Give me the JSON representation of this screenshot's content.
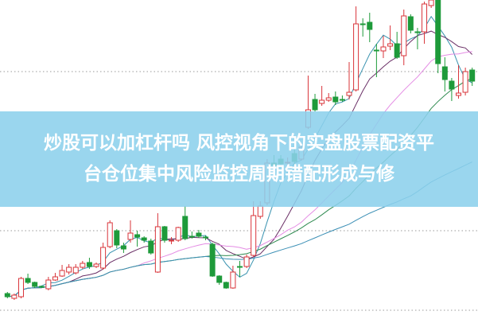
{
  "headline": {
    "line1": "炒股可以加杠杆吗 风控视角下的实盘股票配资平",
    "line2": "台仓位集中风险监控周期错配形成与修"
  },
  "colors": {
    "up": "#d9343a",
    "down": "#1e9a3a",
    "banner": "#8cd0ec",
    "ma5": "#3a93b0",
    "ma10": "#6a2f66",
    "ma20": "#e48ce4",
    "ma30": "#2f8a50",
    "ma60": "#3b8fb5",
    "grid": "#999999"
  },
  "chart_data": {
    "type": "candlestick",
    "title": "",
    "xlabel": "",
    "ylabel": "",
    "axes_shown": false,
    "grid": "horizontal dotted",
    "moving_averages": [
      5,
      10,
      20,
      30,
      60
    ],
    "ohlc_fields": [
      "open",
      "close",
      "high",
      "low"
    ],
    "candles": [
      [
        3.1,
        2.7,
        3.3,
        2.5
      ],
      [
        2.5,
        2.9,
        3.1,
        2.3
      ],
      [
        2.7,
        5.0,
        5.2,
        2.5
      ],
      [
        5.0,
        4.5,
        5.6,
        4.3
      ],
      [
        4.5,
        4.0,
        4.6,
        3.8
      ],
      [
        4.0,
        3.9,
        4.1,
        3.8
      ],
      [
        3.7,
        4.8,
        5.2,
        3.5
      ],
      [
        4.8,
        5.2,
        5.7,
        4.7
      ],
      [
        5.3,
        6.0,
        6.7,
        5.2
      ],
      [
        5.8,
        6.4,
        6.8,
        5.5
      ],
      [
        5.7,
        6.4,
        6.8,
        5.5
      ],
      [
        6.4,
        6.9,
        7.2,
        6.2
      ],
      [
        7.0,
        6.5,
        7.6,
        6.2
      ],
      [
        6.5,
        6.8,
        7.0,
        6.3
      ],
      [
        6.3,
        8.9,
        9.5,
        6.1
      ],
      [
        9.0,
        12.0,
        12.3,
        8.8
      ],
      [
        11.0,
        9.2,
        11.2,
        8.8
      ],
      [
        9.1,
        8.7,
        9.5,
        8.2
      ],
      [
        9.9,
        10.7,
        12.3,
        9.5
      ],
      [
        10.5,
        10.2,
        11.0,
        9.0
      ],
      [
        10.1,
        9.8,
        10.3,
        9.5
      ],
      [
        9.7,
        8.2,
        10.0,
        8.0
      ],
      [
        5.8,
        11.5,
        13.2,
        5.7
      ],
      [
        11.5,
        9.8,
        11.6,
        9.5
      ],
      [
        9.7,
        9.8,
        10.2,
        9.3
      ],
      [
        9.8,
        11.4,
        11.5,
        9.6
      ],
      [
        12.8,
        10.0,
        14.1,
        9.8
      ],
      [
        10.3,
        10.2,
        10.9,
        10.0
      ],
      [
        10.7,
        10.3,
        11.1,
        10.1
      ],
      [
        10.2,
        10.1,
        10.4,
        9.8
      ],
      [
        9.3,
        5.3,
        9.5,
        5.2
      ],
      [
        5.3,
        4.5,
        5.4,
        4.2
      ],
      [
        4.5,
        3.8,
        4.6,
        3.7
      ],
      [
        3.8,
        5.8,
        6.6,
        3.7
      ],
      [
        6.5,
        6.4,
        7.2,
        5.2
      ],
      [
        6.5,
        7.7,
        8.0,
        6.3
      ],
      [
        7.9,
        12.9,
        14.7,
        7.7
      ],
      [
        12.8,
        14.1,
        14.7,
        12.5
      ],
      [
        14.5,
        19.5,
        20.0,
        14.2
      ],
      [
        19.5,
        19.2,
        20.5,
        18.5
      ],
      [
        20.0,
        19.4,
        20.5,
        19.0
      ],
      [
        19.5,
        19.6,
        20.2,
        19.0
      ],
      [
        20.7,
        19.7,
        21.2,
        19.2
      ],
      [
        20.0,
        21.5,
        22.0,
        19.8
      ],
      [
        24.0,
        26.2,
        30.5,
        23.8
      ],
      [
        27.5,
        26.2,
        28.2,
        26.0
      ],
      [
        27.0,
        27.4,
        29.2,
        26.7
      ],
      [
        27.4,
        27.7,
        28.3,
        27.2
      ],
      [
        27.8,
        27.2,
        28.5,
        26.8
      ],
      [
        27.5,
        27.4,
        28.0,
        27.2
      ],
      [
        28.0,
        28.4,
        32.2,
        27.5
      ],
      [
        28.7,
        37.0,
        39.2,
        28.5
      ],
      [
        37.0,
        36.9,
        37.7,
        35.4
      ],
      [
        37.2,
        36.3,
        38.4,
        34.7
      ],
      [
        33.7,
        33.6,
        34.5,
        30.3
      ],
      [
        33.6,
        34.1,
        35.5,
        32.7
      ],
      [
        34.2,
        34.5,
        36.8,
        33.7
      ],
      [
        34.5,
        32.8,
        36.0,
        32.6
      ],
      [
        33.0,
        38.0,
        38.8,
        31.8
      ],
      [
        37.9,
        36.2,
        38.2,
        35.8
      ],
      [
        36.0,
        35.9,
        36.5,
        33.8
      ],
      [
        36.0,
        39.5,
        39.8,
        34.5
      ],
      [
        39.3,
        40.0,
        40.2,
        39.0
      ],
      [
        40.0,
        32.0,
        40.2,
        30.8
      ],
      [
        31.6,
        30.0,
        32.8,
        28.5
      ],
      [
        29.8,
        28.8,
        30.2,
        27.3
      ],
      [
        28.0,
        28.3,
        31.8,
        27.6
      ],
      [
        28.4,
        31.0,
        31.5,
        28.0
      ],
      [
        31.2,
        29.8,
        31.5,
        29.2
      ]
    ],
    "gridlines": [
      31,
      11,
      1
    ],
    "ylim": [
      0,
      40
    ]
  }
}
